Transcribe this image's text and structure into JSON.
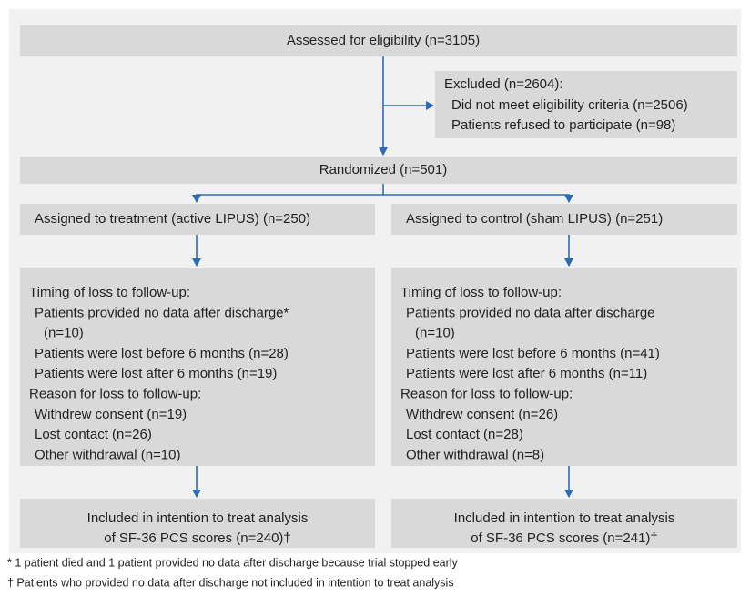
{
  "assessed": "Assessed for eligibility (n=3105)",
  "excluded": {
    "title": "Excluded (n=2604):",
    "items": [
      "Did not meet eligibility criteria (n=2506)",
      "Patients refused to participate (n=98)"
    ]
  },
  "randomized": "Randomized (n=501)",
  "arms": [
    {
      "assigned": "Assigned to treatment (active LIPUS) (n=250)",
      "timing_title": "Timing of loss to follow-up:",
      "timing_items": [
        "Patients provided no data after discharge*",
        "(n=10)",
        "Patients were lost before 6 months (n=28)",
        "Patients were lost after 6 months (n=19)"
      ],
      "reason_title": "Reason for loss to follow-up:",
      "reason_items": [
        "Withdrew consent (n=19)",
        "Lost contact (n=26)",
        "Other withdrawal (n=10)"
      ],
      "included": [
        "Included in intention to treat analysis",
        "of SF-36 PCS scores (n=240)†"
      ]
    },
    {
      "assigned": "Assigned to control (sham LIPUS) (n=251)",
      "timing_title": "Timing of loss to follow-up:",
      "timing_items": [
        "Patients provided no data after discharge",
        "(n=10)",
        "Patients were lost before 6 months (n=41)",
        "Patients were lost after 6 months (n=11)"
      ],
      "reason_title": "Reason for loss to follow-up:",
      "reason_items": [
        "Withdrew consent (n=26)",
        "Lost contact (n=28)",
        "Other withdrawal (n=8)"
      ],
      "included": [
        "Included in intention to treat analysis",
        "of SF-36 PCS scores (n=241)†"
      ]
    }
  ],
  "footnotes": [
    "* 1 patient died and 1 patient provided no data after discharge because trial stopped early",
    "† Patients who provided no data after discharge not included in intention to treat analysis"
  ]
}
